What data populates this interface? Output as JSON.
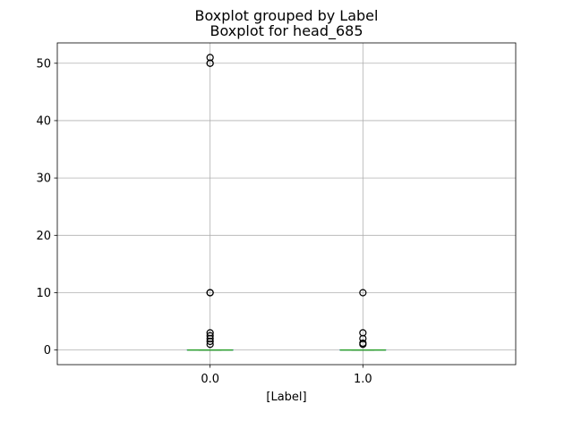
{
  "chart_data": {
    "type": "box",
    "suptitle": "Boxplot grouped by Label",
    "title": "Boxplot for head_685",
    "xlabel": "[Label]",
    "ylabel": "",
    "categories": [
      "0.0",
      "1.0"
    ],
    "ylim": [
      -2.55,
      53.55
    ],
    "yticks": [
      0,
      10,
      20,
      30,
      40,
      50
    ],
    "grid": true,
    "colors": {
      "box": "#1f77b4",
      "median": "#2ca02c",
      "grid": "#b0b0b0",
      "flier": "#000000"
    },
    "boxes": [
      {
        "category": "0.0",
        "q1": 0,
        "median": 0,
        "q3": 0,
        "whisker_low": 0,
        "whisker_high": 0,
        "fliers": [
          1,
          1.5,
          2,
          2.5,
          3,
          10,
          10,
          50,
          50,
          51
        ]
      },
      {
        "category": "1.0",
        "q1": 0,
        "median": 0,
        "q3": 0,
        "whisker_low": 0,
        "whisker_high": 0,
        "fliers": [
          1,
          1.2,
          2,
          3,
          10
        ]
      }
    ]
  }
}
